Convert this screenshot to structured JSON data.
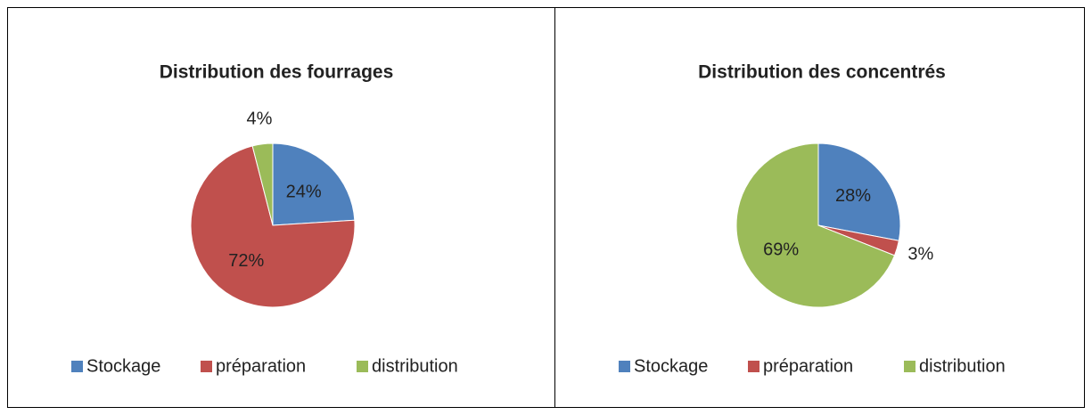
{
  "chart_data": [
    {
      "type": "pie",
      "title": "Distribution des fourrages",
      "categories": [
        "Stockage",
        "préparation",
        "distribution"
      ],
      "values": [
        24,
        72,
        4
      ],
      "value_labels": [
        "24%",
        "72%",
        "4%"
      ],
      "colors": [
        "#4f81bd",
        "#c0504d",
        "#9bbb59"
      ],
      "legend": "bottom"
    },
    {
      "type": "pie",
      "title": "Distribution des concentrés",
      "categories": [
        "Stockage",
        "préparation",
        "distribution"
      ],
      "values": [
        28,
        3,
        69
      ],
      "value_labels": [
        "28%",
        "3%",
        "69%"
      ],
      "colors": [
        "#4f81bd",
        "#c0504d",
        "#9bbb59"
      ],
      "legend": "bottom"
    }
  ]
}
